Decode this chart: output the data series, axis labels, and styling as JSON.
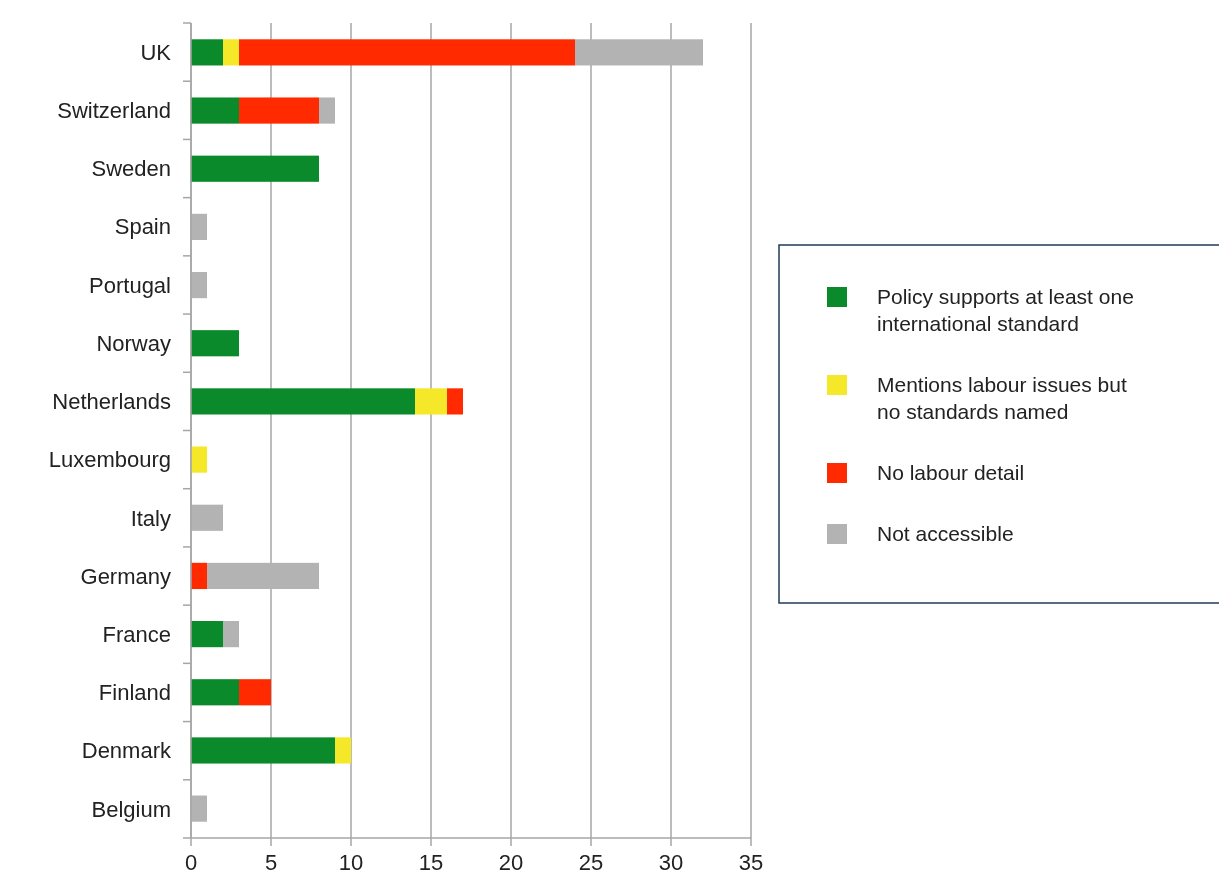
{
  "chart_data": {
    "type": "bar",
    "orientation": "horizontal",
    "stacked": true,
    "categories": [
      "UK",
      "Switzerland",
      "Sweden",
      "Spain",
      "Portugal",
      "Norway",
      "Netherlands",
      "Luxembourg",
      "Italy",
      "Germany",
      "France",
      "Finland",
      "Denmark",
      "Belgium"
    ],
    "series": [
      {
        "name": "Policy supports at least one international standard",
        "color": "#0a8a2a",
        "values": [
          2,
          3,
          8,
          0,
          0,
          3,
          14,
          0,
          0,
          0,
          2,
          3,
          9,
          0
        ]
      },
      {
        "name": "Mentions labour issues but no standards named",
        "color": "#f5e829",
        "values": [
          1,
          0,
          0,
          0,
          0,
          0,
          2,
          1,
          0,
          0,
          0,
          0,
          1,
          0
        ]
      },
      {
        "name": "No labour detail",
        "color": "#ff2a00",
        "values": [
          21,
          5,
          0,
          0,
          0,
          0,
          1,
          0,
          0,
          1,
          0,
          2,
          0,
          0
        ]
      },
      {
        "name": "Not accessible",
        "color": "#b3b3b3",
        "values": [
          8,
          1,
          0,
          1,
          1,
          0,
          0,
          0,
          2,
          7,
          1,
          0,
          0,
          1
        ]
      }
    ],
    "xlim": [
      0,
      35
    ],
    "xticks": [
      0,
      5,
      10,
      15,
      20,
      25,
      30,
      35
    ],
    "grid": "x",
    "legend": "right"
  }
}
